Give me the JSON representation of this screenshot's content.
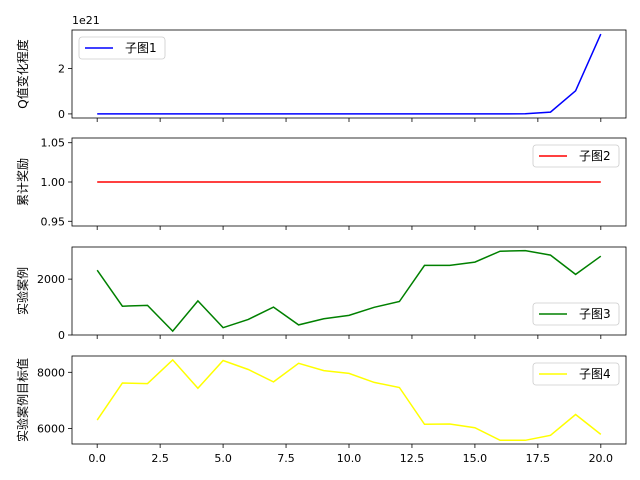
{
  "chart_data": [
    {
      "type": "line",
      "x": [
        0,
        1,
        2,
        3,
        4,
        5,
        6,
        7,
        8,
        9,
        10,
        11,
        12,
        13,
        14,
        15,
        16,
        17,
        18,
        19,
        20
      ],
      "series": [
        {
          "name": "子图1",
          "color": "#0000ff",
          "values": [
            0,
            0,
            0,
            0,
            0,
            0,
            0,
            0,
            0,
            0,
            0,
            0,
            0,
            0,
            0,
            0,
            0,
            0.008,
            0.08,
            1.02,
            3.52
          ]
        }
      ],
      "ylabel": "Q值变化程度",
      "ylim": [
        -0.18,
        3.7
      ],
      "yticks": [
        0,
        2
      ],
      "offset_text": "1e21",
      "xlim": [
        -1,
        21
      ],
      "xticks_shown": false,
      "legend": "top-left"
    },
    {
      "type": "line",
      "x": [
        0,
        1,
        2,
        3,
        4,
        5,
        6,
        7,
        8,
        9,
        10,
        11,
        12,
        13,
        14,
        15,
        16,
        17,
        18,
        19,
        20
      ],
      "series": [
        {
          "name": "子图2",
          "color": "#ff0000",
          "values": [
            1,
            1,
            1,
            1,
            1,
            1,
            1,
            1,
            1,
            1,
            1,
            1,
            1,
            1,
            1,
            1,
            1,
            1,
            1,
            1,
            1
          ]
        }
      ],
      "ylabel": "累计奖励",
      "ylim": [
        0.944,
        1.056
      ],
      "yticks": [
        0.95,
        1.0,
        1.05
      ],
      "ytick_labels": [
        "0.95",
        "1.00",
        "1.05"
      ],
      "xlim": [
        -1,
        21
      ],
      "xticks_shown": false,
      "legend": "top-right"
    },
    {
      "type": "line",
      "x": [
        0,
        1,
        2,
        3,
        4,
        5,
        6,
        7,
        8,
        9,
        10,
        11,
        12,
        13,
        14,
        15,
        16,
        17,
        18,
        19,
        20
      ],
      "series": [
        {
          "name": "子图3",
          "color": "#008000",
          "values": [
            2320,
            1030,
            1060,
            140,
            1220,
            260,
            560,
            1000,
            360,
            580,
            700,
            990,
            1200,
            2490,
            2490,
            2610,
            3000,
            3020,
            2860,
            2170,
            2820
          ]
        }
      ],
      "ylabel": "实验案例",
      "ylim": [
        0,
        3150
      ],
      "yticks": [
        0,
        2000
      ],
      "xlim": [
        -1,
        21
      ],
      "xticks_shown": false,
      "legend": "bottom-right"
    },
    {
      "type": "line",
      "x": [
        0,
        1,
        2,
        3,
        4,
        5,
        6,
        7,
        8,
        9,
        10,
        11,
        12,
        13,
        14,
        15,
        16,
        17,
        18,
        19,
        20
      ],
      "series": [
        {
          "name": "子图4",
          "color": "#ffff00",
          "values": [
            6300,
            7620,
            7600,
            8440,
            7430,
            8420,
            8100,
            7660,
            8320,
            8060,
            7960,
            7640,
            7460,
            6150,
            6160,
            6030,
            5580,
            5580,
            5760,
            6500,
            5790
          ]
        }
      ],
      "ylabel": "实验案例目标值",
      "ylim": [
        5450,
        8580
      ],
      "yticks": [
        6000,
        8000
      ],
      "xlim": [
        -1,
        21
      ],
      "xticks": [
        0,
        2.5,
        5,
        7.5,
        10,
        12.5,
        15,
        17.5,
        20
      ],
      "xtick_labels": [
        "0.0",
        "2.5",
        "5.0",
        "7.5",
        "10.0",
        "12.5",
        "15.0",
        "17.5",
        "20.0"
      ],
      "xticks_shown": true,
      "legend": "top-right"
    }
  ]
}
